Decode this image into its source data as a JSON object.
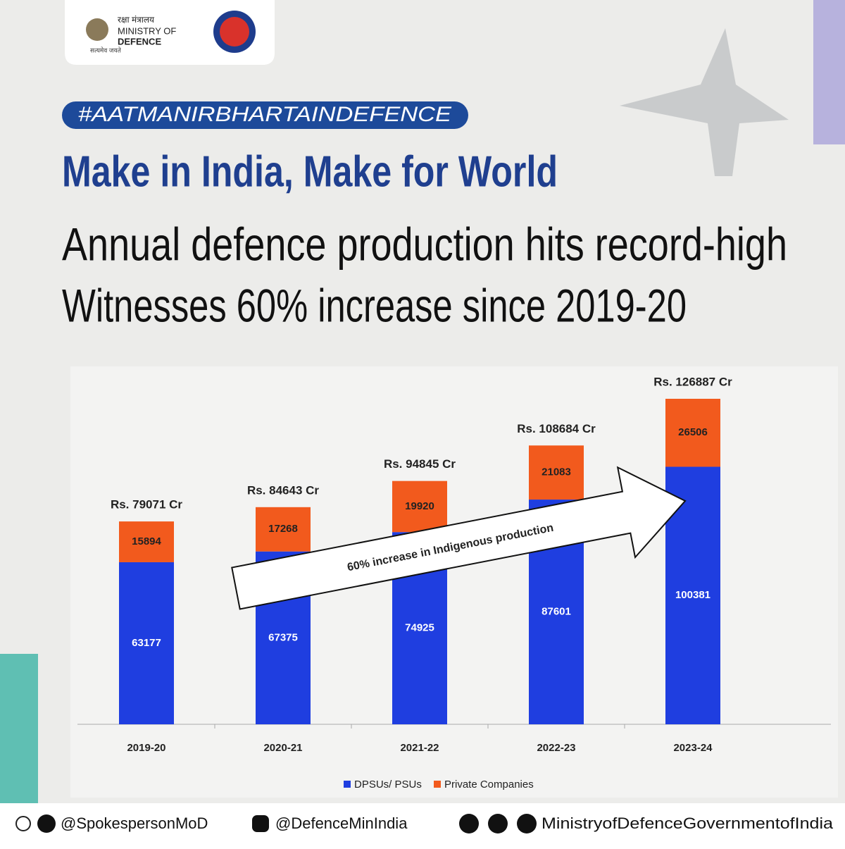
{
  "header": {
    "hindi": "रक्षा मंत्रालय",
    "ministry": "MINISTRY OF",
    "defence": "DEFENCE",
    "motto": "सत्यमेव जयते"
  },
  "hashtag": "#AATMANIRBHARTAINDEFENCE",
  "title": "Make in India, Make for World",
  "subtitle": [
    "Annual defence production hits record-high",
    "Witnesses 60% increase since 2019-20"
  ],
  "chart_data": {
    "type": "bar",
    "stacked": true,
    "categories": [
      "2019-20",
      "2020-21",
      "2021-22",
      "2022-23",
      "2023-24"
    ],
    "series": [
      {
        "name": "DPSUs/ PSUs",
        "color": "#1f3ee0",
        "values": [
          63177,
          67375,
          74925,
          87601,
          100381
        ]
      },
      {
        "name": "Private Companies",
        "color": "#f25a1d",
        "values": [
          15894,
          17268,
          19920,
          21083,
          26506
        ]
      }
    ],
    "totals": {
      "values": [
        79071,
        84643,
        94845,
        108684,
        126887
      ],
      "value_labels": [
        "Rs. 79071 Cr",
        "Rs. 84643 Cr",
        "Rs. 94845 Cr",
        "Rs. 108684 Cr",
        "Rs. 126887 Cr"
      ]
    },
    "annotation": "60% increase in Indigenous production"
  },
  "footer": [
    "@SpokespersonMoD",
    "@DefenceMinIndia",
    "MinistryofDefenceGovernmentofIndia"
  ]
}
